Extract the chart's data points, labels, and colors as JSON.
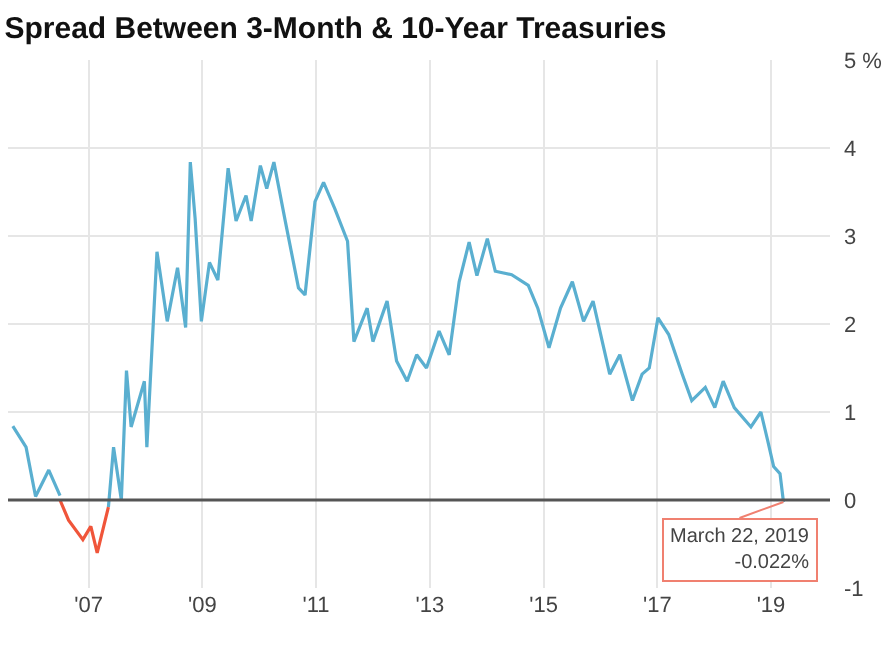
{
  "chart_data": {
    "type": "line",
    "title": "Spread Between 3-Month & 10-Year Treasuries",
    "series": [
      {
        "color": "#5aafd0",
        "x": [
          "2005-09-01",
          "2005-11-25",
          "2006-01-25",
          "2006-04-20",
          "2006-07-01",
          "2006-10-15",
          "2007-05-08",
          "2007-06-10",
          "2007-07-30",
          "2007-09-01",
          "2007-10-01",
          "2007-12-25",
          "2008-01-10",
          "2008-03-15",
          "2008-05-20",
          "2008-07-25",
          "2008-09-15",
          "2008-10-15",
          "2008-11-15",
          "2008-12-25",
          "2009-02-15",
          "2009-04-10",
          "2009-06-15",
          "2009-08-05",
          "2009-10-08",
          "2009-11-10",
          "2010-01-08",
          "2010-02-18",
          "2010-04-05",
          "2010-06-18",
          "2010-09-10",
          "2010-10-22",
          "2010-12-25",
          "2011-02-18",
          "2011-05-01",
          "2011-07-22",
          "2011-09-01",
          "2011-11-25",
          "2012-01-01",
          "2012-04-01",
          "2012-06-01",
          "2012-08-08",
          "2012-10-08",
          "2012-12-10",
          "2013-03-01",
          "2013-05-05",
          "2013-07-08",
          "2013-09-10",
          "2013-10-30",
          "2014-01-05",
          "2014-02-25",
          "2014-06-10",
          "2014-09-25",
          "2014-11-25",
          "2015-02-05",
          "2015-04-20",
          "2015-07-05",
          "2015-09-15",
          "2015-11-15",
          "2016-03-01",
          "2016-05-05",
          "2016-07-25",
          "2016-09-25",
          "2016-11-10",
          "2017-01-05",
          "2017-03-15",
          "2017-06-10",
          "2017-08-10",
          "2017-11-05",
          "2018-01-05",
          "2018-02-28",
          "2018-05-10",
          "2018-08-25",
          "2018-10-28",
          "2018-12-10",
          "2019-01-18",
          "2019-02-28",
          "2019-03-22"
        ],
        "values": [
          0.84,
          0.6,
          0.04,
          0.34,
          0.05,
          null,
          -0.08,
          0.6,
          0.0,
          1.47,
          0.83,
          1.35,
          0.6,
          2.82,
          2.03,
          2.64,
          1.96,
          3.84,
          3.2,
          2.03,
          2.7,
          2.5,
          3.77,
          3.17,
          3.46,
          3.17,
          3.8,
          3.54,
          3.84,
          3.16,
          2.41,
          2.33,
          3.39,
          3.61,
          3.31,
          2.94,
          1.8,
          2.18,
          1.8,
          2.26,
          1.58,
          1.35,
          1.65,
          1.5,
          1.92,
          1.65,
          2.48,
          2.93,
          2.55,
          2.97,
          2.6,
          2.56,
          2.44,
          2.18,
          1.73,
          2.18,
          2.48,
          2.03,
          2.26,
          1.43,
          1.65,
          1.13,
          1.43,
          1.5,
          2.07,
          1.88,
          1.43,
          1.13,
          1.28,
          1.05,
          1.35,
          1.05,
          0.83,
          1.0,
          0.68,
          0.38,
          0.3,
          -0.022
        ]
      },
      {
        "color": "#f0553a",
        "x": [
          "2006-07-01",
          "2006-08-25",
          "2006-11-25",
          "2007-01-15",
          "2007-02-25",
          "2007-05-08"
        ],
        "values": [
          0.0,
          -0.23,
          -0.45,
          -0.3,
          -0.6,
          -0.08
        ]
      }
    ],
    "xlim": [
      "2005-08-01",
      "2020-01-15"
    ],
    "xticks": [
      {
        "value": "2007-01-01",
        "label": "'07"
      },
      {
        "value": "2009-01-01",
        "label": "'09"
      },
      {
        "value": "2011-01-01",
        "label": "'11"
      },
      {
        "value": "2013-01-01",
        "label": "'13"
      },
      {
        "value": "2015-01-01",
        "label": "'15"
      },
      {
        "value": "2017-01-01",
        "label": "'17"
      },
      {
        "value": "2019-01-01",
        "label": "'19"
      }
    ],
    "ylim": [
      -1,
      5
    ],
    "yticks": [
      -1,
      0,
      1,
      2,
      3,
      4,
      {
        "value": 5,
        "label": "5 %"
      }
    ],
    "ref_lines": [
      {
        "axis": "y",
        "value": 0,
        "color": "#555555"
      }
    ],
    "annotations": [
      {
        "text": "March 22, 2019\n-0.022%",
        "x": "2019-03-22",
        "y": -0.022
      }
    ],
    "grid": true,
    "marker": "none",
    "line_style": "solid"
  }
}
